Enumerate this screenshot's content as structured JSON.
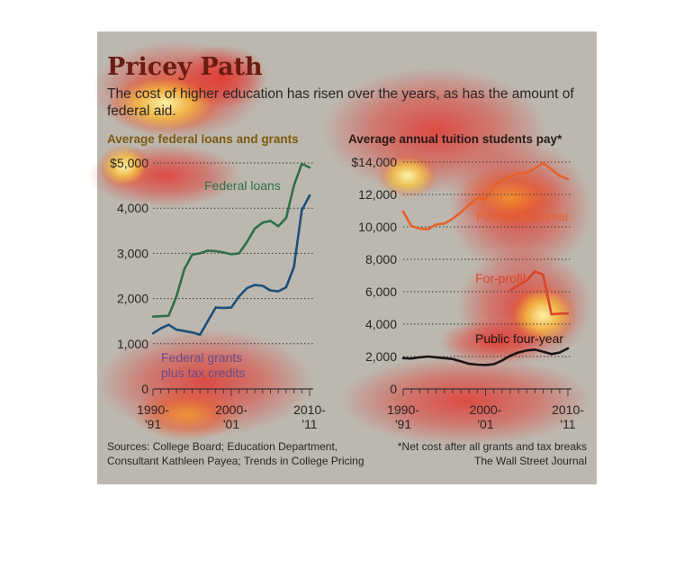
{
  "title": "Pricey Path",
  "subtitle": "The cost of higher education has risen over the years, as has the amount of federal aid.",
  "sources": "Sources: College Board; Education Department, Consultant Kathleen Payea; Trends in College Pricing",
  "footnote": "*Net cost after all grants and tax breaks",
  "publisher": "The Wall Street Journal",
  "colors": {
    "federal_loans": "#2e7048",
    "federal_grants": "#1d4f7a",
    "private": "#e6622a",
    "for_profit": "#d9452c",
    "public": "#1b1414",
    "panel_bg": "#bcb8af"
  },
  "chart_data": [
    {
      "type": "line",
      "title": "Average federal loans and grants",
      "y_tick_labels": [
        "0",
        "1,000",
        "2,000",
        "3,000",
        "4,000",
        "$5,000"
      ],
      "y_ticks": [
        0,
        1000,
        2000,
        3000,
        4000,
        5000
      ],
      "x_tick_labels": [
        [
          "1990-",
          "'91"
        ],
        [
          "2000-",
          "'01"
        ],
        [
          "2010-",
          "'11"
        ]
      ],
      "x_tick_years": [
        1990,
        2000,
        2010
      ],
      "ylim": [
        0,
        5000
      ],
      "xlim": [
        1990,
        2010
      ],
      "grid": true,
      "x": [
        1990,
        1991,
        1992,
        1993,
        1994,
        1995,
        1996,
        1997,
        1998,
        1999,
        2000,
        2001,
        2002,
        2003,
        2004,
        2005,
        2006,
        2007,
        2008,
        2009,
        2010
      ],
      "series": [
        {
          "name": "Federal loans",
          "label": "Federal loans",
          "color_key": "federal_loans",
          "values": [
            1600,
            1610,
            1620,
            2050,
            2650,
            2970,
            3000,
            3060,
            3050,
            3020,
            2980,
            3000,
            3250,
            3550,
            3680,
            3720,
            3600,
            3780,
            4500,
            4980,
            4900
          ]
        },
        {
          "name": "Federal grants plus tax credits",
          "label_lines": [
            "Federal grants",
            "plus tax credits"
          ],
          "color_key": "federal_grants",
          "values": [
            1230,
            1340,
            1420,
            1310,
            1280,
            1250,
            1200,
            1500,
            1800,
            1790,
            1800,
            2050,
            2230,
            2300,
            2280,
            2180,
            2160,
            2250,
            2700,
            3950,
            4280
          ]
        }
      ]
    },
    {
      "type": "line",
      "title": "Average annual tuition students pay*",
      "y_tick_labels": [
        "0",
        "2,000",
        "4,000",
        "6,000",
        "8,000",
        "10,000",
        "12,000",
        "$14,000"
      ],
      "y_ticks": [
        0,
        2000,
        4000,
        6000,
        8000,
        10000,
        12000,
        14000
      ],
      "x_tick_labels": [
        [
          "1990-",
          "'91"
        ],
        [
          "2000-",
          "'01"
        ],
        [
          "2010-",
          "'11"
        ]
      ],
      "x_tick_years": [
        1990,
        2000,
        2010
      ],
      "ylim": [
        0,
        14000
      ],
      "xlim": [
        1990,
        2010
      ],
      "grid": true,
      "series": [
        {
          "name": "Private four-year",
          "label": "Private four-year",
          "color_key": "private",
          "x": [
            1990,
            1991,
            1992,
            1993,
            1994,
            1995,
            1996,
            1997,
            1998,
            1999,
            2000,
            2001,
            2002,
            2003,
            2004,
            2005,
            2006,
            2007,
            2008,
            2009,
            2010
          ],
          "values": [
            10950,
            10050,
            9900,
            9850,
            10150,
            10200,
            10500,
            10900,
            11350,
            11800,
            11700,
            12500,
            12900,
            13100,
            13300,
            13350,
            13600,
            13950,
            13550,
            13150,
            12950
          ]
        },
        {
          "name": "For-profit",
          "label": "For-profit",
          "color_key": "for_profit",
          "x": [
            2003,
            2004,
            2005,
            2006,
            2007,
            2008,
            2009,
            2010
          ],
          "values": [
            6100,
            6400,
            6700,
            7250,
            7050,
            4600,
            4650,
            4650
          ]
        },
        {
          "name": "Public four-year",
          "label": "Public four-year",
          "color_key": "public",
          "x": [
            1990,
            1991,
            1992,
            1993,
            1994,
            1995,
            1996,
            1997,
            1998,
            1999,
            2000,
            2001,
            2002,
            2003,
            2004,
            2005,
            2006,
            2007,
            2008,
            2009,
            2010
          ],
          "values": [
            1900,
            1880,
            1950,
            2000,
            1950,
            1900,
            1850,
            1700,
            1550,
            1500,
            1480,
            1520,
            1750,
            2050,
            2250,
            2380,
            2420,
            2300,
            2150,
            2250,
            2500
          ]
        }
      ]
    }
  ]
}
